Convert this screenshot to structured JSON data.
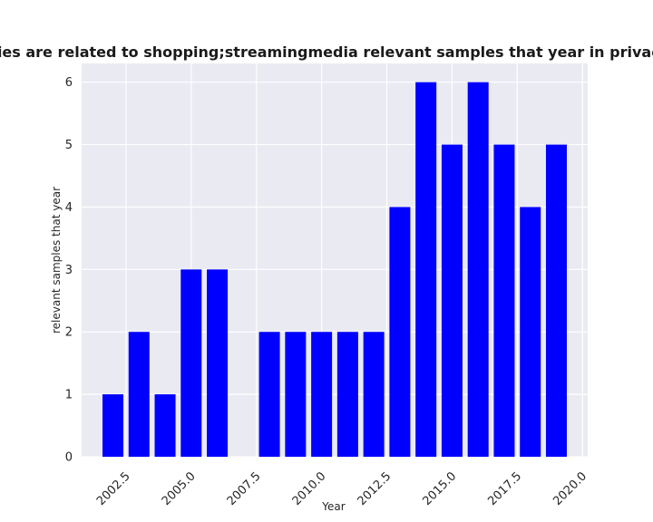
{
  "chart_data": {
    "type": "bar",
    "title": "Categories are related to shopping;streamingmedia relevant samples that year in privacy policies",
    "xlabel": "Year",
    "ylabel": "relevant samples that year",
    "x": [
      2002,
      2003,
      2004,
      2005,
      2006,
      2007,
      2008,
      2009,
      2010,
      2011,
      2012,
      2013,
      2014,
      2015,
      2016,
      2017,
      2018,
      2019
    ],
    "values": [
      1,
      2,
      1,
      3,
      3,
      0,
      2,
      2,
      2,
      2,
      2,
      4,
      6,
      5,
      6,
      5,
      4,
      5
    ],
    "xlim": [
      2000.8,
      2020.2
    ],
    "ylim": [
      0,
      6.3
    ],
    "xticks": [
      "2002.5",
      "2005.0",
      "2007.5",
      "2010.0",
      "2012.5",
      "2015.0",
      "2017.5",
      "2020.0"
    ],
    "yticks": [
      "0",
      "1",
      "2",
      "3",
      "4",
      "5",
      "6"
    ],
    "bar_color": "#0000ff",
    "plot_background": "#eaeaf2",
    "grid_color": "#ffffff",
    "grid": true,
    "legend": false
  }
}
